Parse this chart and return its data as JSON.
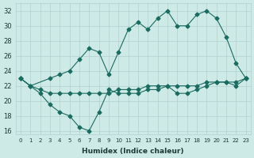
{
  "xlabel": "Humidex (Indice chaleur)",
  "bg_color": "#ceeae7",
  "grid_color": "#b0d0cd",
  "line_color": "#1a6b60",
  "xlim": [
    -0.5,
    23.5
  ],
  "ylim": [
    15.5,
    33
  ],
  "yticks": [
    16,
    18,
    20,
    22,
    24,
    26,
    28,
    30,
    32
  ],
  "xticks": [
    0,
    1,
    2,
    3,
    4,
    5,
    6,
    7,
    8,
    9,
    10,
    11,
    12,
    13,
    14,
    15,
    16,
    17,
    18,
    19,
    20,
    21,
    22,
    23
  ],
  "series_flat_x": [
    0,
    1,
    2,
    3,
    4,
    5,
    6,
    7,
    8,
    9,
    10,
    11,
    12,
    13,
    14,
    15,
    16,
    17,
    18,
    19,
    20,
    21,
    22,
    23
  ],
  "series_flat_y": [
    23,
    22,
    21.5,
    21,
    21,
    21,
    21,
    21,
    21,
    21,
    21.5,
    21.5,
    21.5,
    22,
    22,
    22,
    22,
    22,
    22,
    22.5,
    22.5,
    22.5,
    22.5,
    23
  ],
  "series_dip_x": [
    0,
    1,
    2,
    3,
    4,
    5,
    6,
    7,
    8,
    9,
    10,
    11,
    12,
    13,
    14,
    15,
    16,
    17,
    18,
    19,
    20,
    21,
    22,
    23
  ],
  "series_dip_y": [
    23,
    22,
    21,
    19.5,
    18.5,
    18,
    16.5,
    16,
    18.5,
    21.5,
    21,
    21,
    21,
    21.5,
    21.5,
    22,
    21,
    21,
    21.5,
    22,
    22.5,
    22.5,
    22,
    23
  ],
  "series_peak_x": [
    0,
    1,
    3,
    4,
    5,
    6,
    7,
    8,
    9,
    10,
    11,
    12,
    13,
    14,
    15,
    16,
    17,
    18,
    19,
    20,
    21,
    22,
    23
  ],
  "series_peak_y": [
    23,
    22,
    23,
    23.5,
    24,
    25.5,
    27,
    26.5,
    23.5,
    26.5,
    29.5,
    30.5,
    29.5,
    31,
    32,
    30,
    30,
    31.5,
    32,
    31,
    28.5,
    25,
    23
  ]
}
